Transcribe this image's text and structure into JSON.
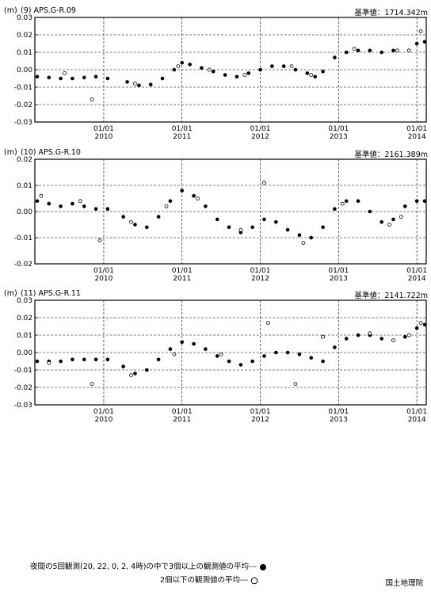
{
  "unit_label": "(m)",
  "legend": {
    "filled_label": "夜間の5回観測(20, 22, 0, 2, 4時)の中で3個以上の観測値の平均---",
    "open_label": "2個以下の観測値の平均---"
  },
  "agency": "国土地理院",
  "chart_data": [
    {
      "type": "scatter",
      "title": "(9) APS.G-R.09",
      "reference": "基準値：1714.342m",
      "ylabel": "(m)",
      "ylim": [
        -0.03,
        0.03
      ],
      "yticks": [
        -0.03,
        -0.02,
        -0.01,
        0.0,
        0.01,
        0.02,
        0.03
      ],
      "ytick_labels": [
        "-0.03",
        "-0.02",
        "-0.01",
        "0.00",
        "0.01",
        "0.02",
        "0.03"
      ],
      "xlim": [
        2009.12,
        2014.12
      ],
      "xtick_labels": [
        {
          "date": "01/01",
          "year": "2010"
        },
        {
          "date": "01/01",
          "year": "2011"
        },
        {
          "date": "01/01",
          "year": "2012"
        },
        {
          "date": "01/01",
          "year": "2013"
        },
        {
          "date": "01/01",
          "year": "2014"
        }
      ],
      "grid": true,
      "series": [
        {
          "marker": "filled",
          "x": [
            2009.15,
            2009.3,
            2009.45,
            2009.6,
            2009.75,
            2009.9,
            2010.05,
            2010.3,
            2010.45,
            2010.6,
            2010.75,
            2010.9,
            2011.0,
            2011.1,
            2011.25,
            2011.4,
            2011.55,
            2011.7,
            2011.85,
            2012.0,
            2012.15,
            2012.3,
            2012.45,
            2012.6,
            2012.7,
            2012.8,
            2012.95,
            2013.1,
            2013.25,
            2013.4,
            2013.55,
            2013.7,
            2014.0,
            2014.1
          ],
          "y": [
            -0.004,
            -0.0045,
            -0.005,
            -0.005,
            -0.0045,
            -0.004,
            -0.005,
            -0.007,
            -0.009,
            -0.0085,
            -0.005,
            0.0,
            0.004,
            0.003,
            0.001,
            -0.001,
            -0.003,
            -0.004,
            -0.002,
            0.0,
            0.002,
            0.002,
            0.0,
            -0.002,
            -0.004,
            -0.001,
            0.007,
            0.01,
            0.011,
            0.011,
            0.01,
            0.011,
            0.015,
            0.016
          ]
        },
        {
          "marker": "open",
          "x": [
            2009.5,
            2009.85,
            2010.4,
            2010.95,
            2011.35,
            2011.8,
            2012.4,
            2012.65,
            2013.2,
            2013.75,
            2013.9,
            2014.05
          ],
          "y": [
            -0.002,
            -0.017,
            -0.008,
            0.002,
            0.0,
            -0.003,
            0.002,
            -0.003,
            0.012,
            0.011,
            0.011,
            0.022
          ]
        }
      ]
    },
    {
      "type": "scatter",
      "title": "(10) APS.G-R.10",
      "reference": "基準値：2161.389m",
      "ylabel": "(m)",
      "ylim": [
        -0.02,
        0.02
      ],
      "yticks": [
        -0.02,
        -0.01,
        0.0,
        0.01,
        0.02
      ],
      "ytick_labels": [
        "-0.02",
        "-0.01",
        "0.00",
        "0.01",
        "0.02"
      ],
      "xlim": [
        2009.12,
        2014.12
      ],
      "xtick_labels": [
        {
          "date": "01/01",
          "year": "2010"
        },
        {
          "date": "01/01",
          "year": "2011"
        },
        {
          "date": "01/01",
          "year": "2012"
        },
        {
          "date": "01/01",
          "year": "2013"
        },
        {
          "date": "01/01",
          "year": "2014"
        }
      ],
      "grid": true,
      "series": [
        {
          "marker": "filled",
          "x": [
            2009.15,
            2009.3,
            2009.45,
            2009.6,
            2009.75,
            2009.9,
            2010.05,
            2010.25,
            2010.4,
            2010.55,
            2010.7,
            2010.85,
            2011.0,
            2011.15,
            2011.3,
            2011.45,
            2011.6,
            2011.75,
            2011.9,
            2012.05,
            2012.2,
            2012.35,
            2012.5,
            2012.65,
            2012.8,
            2012.95,
            2013.1,
            2013.25,
            2013.4,
            2013.55,
            2013.7,
            2013.85,
            2014.0,
            2014.1
          ],
          "y": [
            0.004,
            0.003,
            0.002,
            0.003,
            0.002,
            0.001,
            0.001,
            -0.002,
            -0.005,
            -0.006,
            -0.002,
            0.004,
            0.008,
            0.006,
            0.002,
            -0.003,
            -0.006,
            -0.008,
            -0.006,
            -0.003,
            -0.004,
            -0.007,
            -0.009,
            -0.01,
            -0.006,
            0.001,
            0.004,
            0.004,
            0.0,
            -0.004,
            -0.003,
            0.002,
            0.004,
            0.004
          ]
        },
        {
          "marker": "open",
          "x": [
            2009.2,
            2009.7,
            2009.95,
            2010.35,
            2010.8,
            2011.2,
            2011.75,
            2012.05,
            2012.55,
            2013.05,
            2013.65,
            2013.8
          ],
          "y": [
            0.006,
            0.004,
            -0.011,
            -0.004,
            0.002,
            0.005,
            -0.007,
            0.011,
            -0.012,
            0.003,
            -0.005,
            -0.002
          ]
        }
      ]
    },
    {
      "type": "scatter",
      "title": "(11) APS.G-R.11",
      "reference": "基準値：2141.722m",
      "ylabel": "(m)",
      "ylim": [
        -0.03,
        0.03
      ],
      "yticks": [
        -0.03,
        -0.02,
        -0.01,
        0.0,
        0.01,
        0.02,
        0.03
      ],
      "ytick_labels": [
        "-0.03",
        "-0.02",
        "-0.01",
        "0.00",
        "0.01",
        "0.02",
        "0.03"
      ],
      "xlim": [
        2009.12,
        2014.12
      ],
      "xtick_labels": [
        {
          "date": "01/01",
          "year": "2010"
        },
        {
          "date": "01/01",
          "year": "2011"
        },
        {
          "date": "01/01",
          "year": "2012"
        },
        {
          "date": "01/01",
          "year": "2013"
        },
        {
          "date": "01/01",
          "year": "2014"
        }
      ],
      "grid": true,
      "series": [
        {
          "marker": "filled",
          "x": [
            2009.15,
            2009.3,
            2009.45,
            2009.6,
            2009.75,
            2009.9,
            2010.05,
            2010.25,
            2010.4,
            2010.55,
            2010.7,
            2010.85,
            2011.0,
            2011.15,
            2011.3,
            2011.45,
            2011.6,
            2011.75,
            2011.9,
            2012.05,
            2012.2,
            2012.35,
            2012.5,
            2012.65,
            2012.8,
            2012.95,
            2013.1,
            2013.25,
            2013.4,
            2013.55,
            2013.7,
            2013.85,
            2014.0,
            2014.1
          ],
          "y": [
            -0.005,
            -0.005,
            -0.005,
            -0.004,
            -0.004,
            -0.004,
            -0.004,
            -0.008,
            -0.012,
            -0.01,
            -0.004,
            0.002,
            0.006,
            0.005,
            0.002,
            -0.002,
            -0.005,
            -0.007,
            -0.005,
            -0.002,
            0.0,
            0.0,
            -0.001,
            -0.003,
            -0.005,
            0.003,
            0.008,
            0.01,
            0.01,
            0.008,
            0.007,
            0.009,
            0.014,
            0.016
          ]
        },
        {
          "marker": "open",
          "x": [
            2009.3,
            2009.85,
            2010.35,
            2010.9,
            2011.5,
            2012.1,
            2012.45,
            2012.8,
            2013.4,
            2013.7,
            2013.9,
            2014.05
          ],
          "y": [
            -0.006,
            -0.018,
            -0.013,
            -0.001,
            -0.001,
            0.017,
            -0.018,
            0.009,
            0.011,
            0.007,
            0.01,
            0.017
          ]
        }
      ]
    }
  ]
}
